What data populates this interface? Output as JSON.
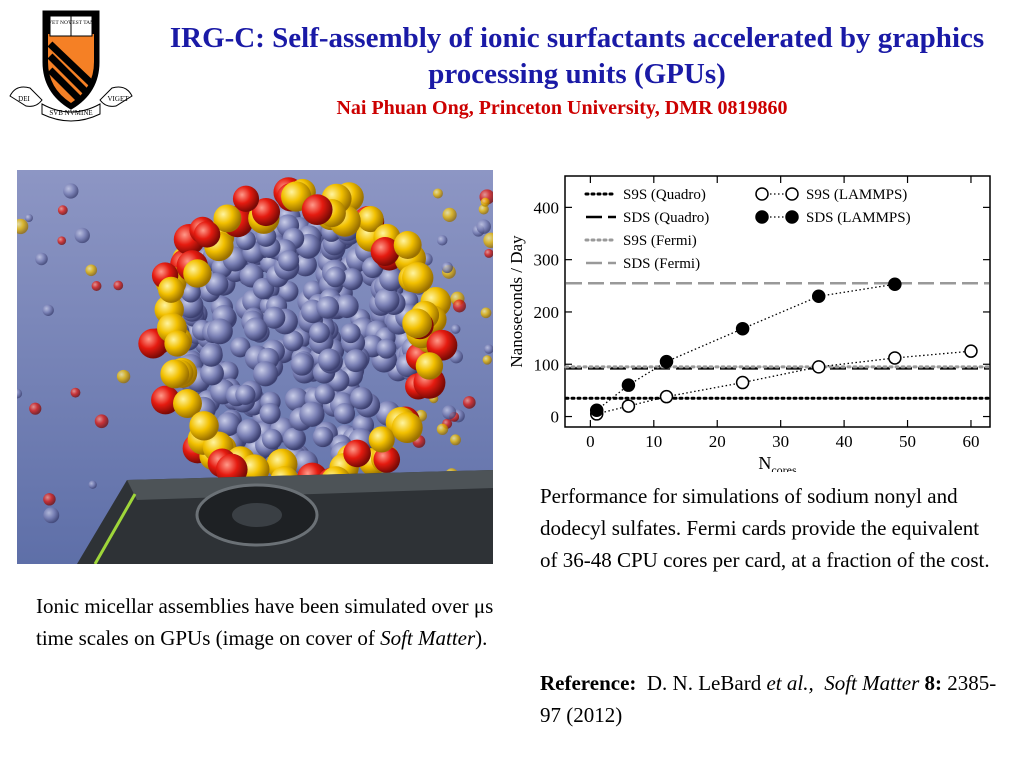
{
  "header": {
    "title": "IRG-C:  Self-assembly of ionic surfactants accelerated by graphics processing units (GPUs)",
    "subtitle": "Nai Phuan Ong, Princeton University, DMR 0819860",
    "logo": {
      "shield_color": "#f58025",
      "motto_left": "DEI",
      "motto_center": "SVB NVMINE",
      "motto_right": "VIGET",
      "book_text_left": "VET NOV",
      "book_text_right": "TEST TAM"
    }
  },
  "image_caption": {
    "text": "Ionic micellar assemblies have been simulated over μs time scales on GPUs (image on cover of ",
    "journal": "Soft Matter",
    "suffix": ")."
  },
  "chart_caption": "Performance for simulations of sodium nonyl and dodecyl sulfates. Fermi cards provide the equivalent of 36-48 CPU cores per card, at a fraction of the cost.",
  "reference": {
    "label": "Reference:",
    "authors": "D. N. LeBard ",
    "etal": "et al.,",
    "journal": "Soft Matter",
    "volume": "8:",
    "pages": "2385-97 (2012)"
  },
  "chart_data": {
    "type": "line",
    "xlabel": "N",
    "xlabel_sub": "cores",
    "ylabel": "Nanoseconds / Day",
    "xlim": [
      -4,
      63
    ],
    "ylim": [
      -20,
      460
    ],
    "xticks": [
      0,
      10,
      20,
      30,
      40,
      50,
      60
    ],
    "yticks": [
      0,
      100,
      200,
      300,
      400
    ],
    "legend_position": "top-left",
    "series": [
      {
        "name": "S9S (Quadro)",
        "style": "dotted",
        "color": "#000000",
        "hline": 35
      },
      {
        "name": "SDS (Quadro)",
        "style": "dashed",
        "color": "#000000",
        "hline": 92
      },
      {
        "name": "S9S (Fermi)",
        "style": "dotted",
        "color": "#999999",
        "hline": 95
      },
      {
        "name": "SDS (Fermi)",
        "style": "dashed",
        "color": "#999999",
        "hline": 255
      },
      {
        "name": "S9S (LAMMPS)",
        "style": "dotted-open-circles",
        "color": "#000000",
        "x": [
          1,
          6,
          12,
          24,
          36,
          48,
          60
        ],
        "y": [
          5,
          20,
          38,
          65,
          95,
          112,
          125
        ]
      },
      {
        "name": "SDS (LAMMPS)",
        "style": "dotted-filled-circles",
        "color": "#000000",
        "x": [
          1,
          6,
          12,
          24,
          36,
          48
        ],
        "y": [
          12,
          60,
          105,
          168,
          230,
          253
        ]
      }
    ]
  }
}
